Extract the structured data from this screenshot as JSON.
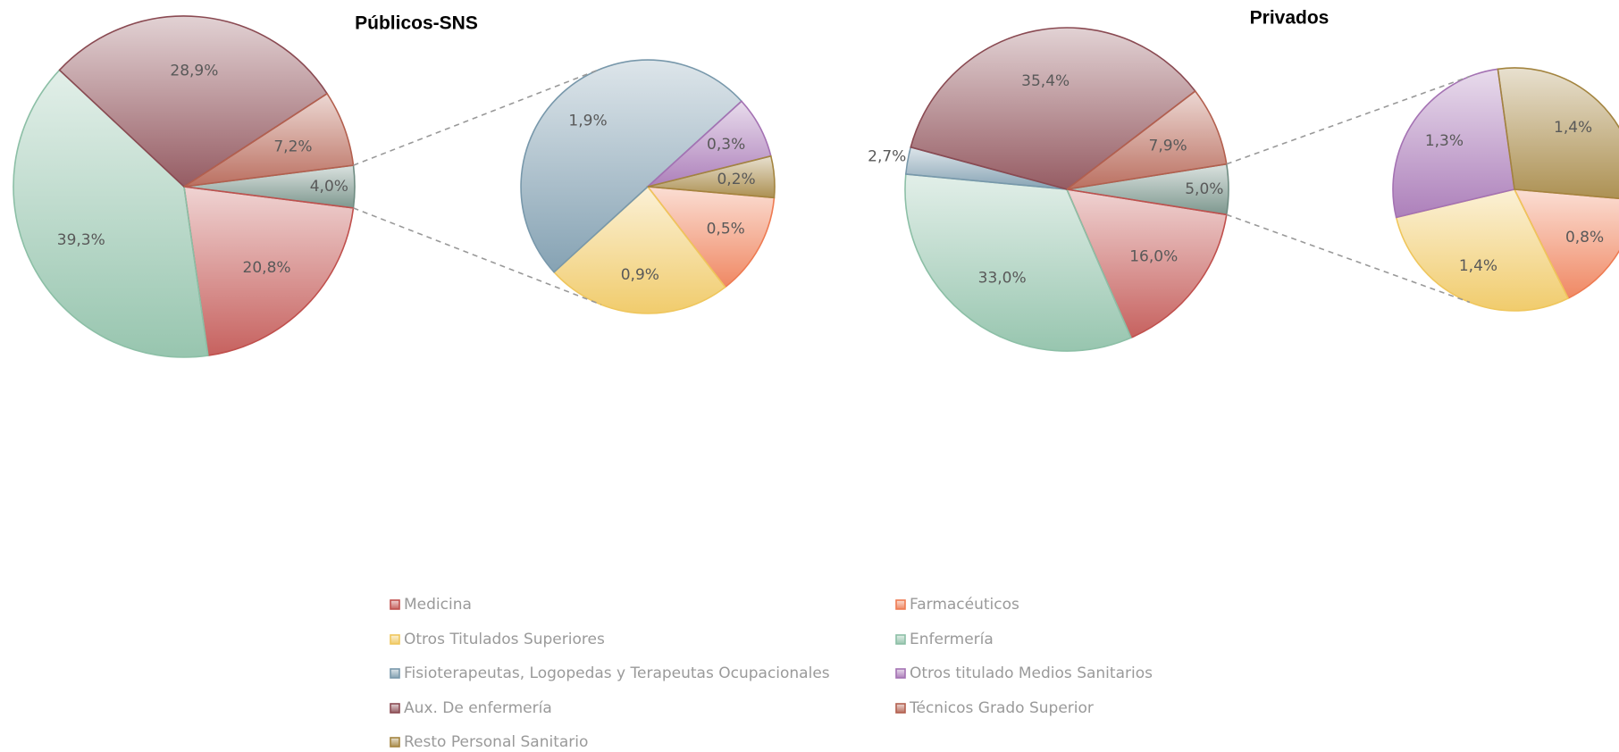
{
  "legend": {
    "categories": [
      "Medicina",
      "Farmacéuticos",
      "Otros Titulados Superiores",
      "Enfermería",
      "Fisioterapeutas, Logopedas y Terapeutas Ocupacionales",
      "Otros titulado Medios Sanitarios",
      "Aux. De enfermería",
      "Técnicos Grado Superior",
      "Resto Personal Sanitario"
    ],
    "colors": [
      "#c0504d",
      "#ee7b52",
      "#efc65c",
      "#8cbfa6",
      "#7898ab",
      "#a472b3",
      "#8a4a52",
      "#b3604f",
      "#a3843f"
    ]
  },
  "chart_data": [
    {
      "type": "pie",
      "title": "Públicos-SNS",
      "values": [
        20.8,
        0.5,
        0.9,
        39.3,
        1.9,
        0.3,
        28.9,
        7.2,
        0.2
      ],
      "value_labels": [
        "20,8%",
        "0,5%",
        "0,9%",
        "39,3%",
        "1,9%",
        "0,3%",
        "28,9%",
        "7,2%",
        "0,2%"
      ],
      "secondary": [
        false,
        true,
        true,
        false,
        true,
        true,
        false,
        false,
        true
      ],
      "other_value": 4.0,
      "other_label": "4,0%",
      "other_color": "#6f8c82"
    },
    {
      "type": "pie",
      "title": "Privados",
      "values": [
        16.0,
        0.8,
        1.4,
        33.0,
        2.7,
        1.3,
        35.4,
        7.9,
        1.4
      ],
      "value_labels": [
        "16,0%",
        "0,8%",
        "1,4%",
        "33,0%",
        "2,7%",
        "1,3%",
        "35,4%",
        "7,9%",
        "1,4%"
      ],
      "secondary": [
        false,
        true,
        true,
        false,
        false,
        true,
        false,
        false,
        true
      ],
      "other_value": 5.0,
      "other_label": "5,0%",
      "other_color": "#6f8c82"
    }
  ]
}
